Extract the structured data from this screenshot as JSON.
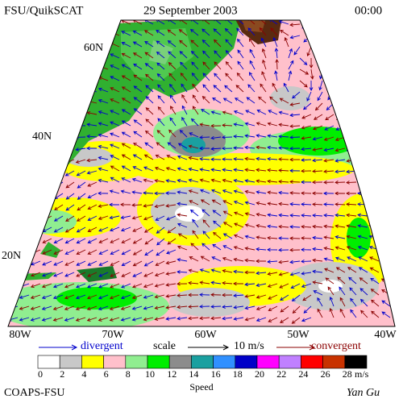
{
  "header": {
    "product": "FSU/QuikSCAT",
    "date": "29 September 2003",
    "time": "00:00"
  },
  "map": {
    "lat_labels": [
      "60N",
      "40N",
      "20N"
    ],
    "lon_labels": [
      "80W",
      "70W",
      "60W",
      "50W",
      "40W"
    ]
  },
  "legend": {
    "divergent": "divergent",
    "scale": "scale",
    "scale_value": "10 m/s",
    "convergent": "convergent",
    "speed_bins": [
      0,
      2,
      4,
      6,
      8,
      10,
      12,
      14,
      16,
      18,
      20,
      22,
      24,
      26,
      28
    ],
    "colors": [
      "#ffffff",
      "#c8c8c8",
      "#ffff00",
      "#ffc0cb",
      "#90ee90",
      "#00ee00",
      "#8c8c8c",
      "#1aa0a0",
      "#3090ff",
      "#0000c8",
      "#ff00ff",
      "#c080ff",
      "#ff0000",
      "#c83200",
      "#000000"
    ],
    "unit": "m/s",
    "speed_label": "Speed"
  },
  "footer": {
    "left": "COAPS-FSU",
    "right": "Yan Gu"
  }
}
